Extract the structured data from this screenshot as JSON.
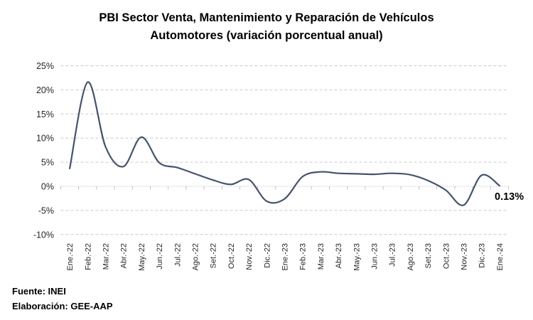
{
  "title": {
    "line1": "PBI Sector Venta, Mantenimiento y Reparación de Vehículos",
    "line2": "Automotores (variación porcentual anual)"
  },
  "chart_data": {
    "type": "line",
    "title": "PBI Sector Venta, Mantenimiento y Reparación de Vehículos Automotores (variación porcentual anual)",
    "categories": [
      "Ene.-22",
      "Feb.-22",
      "Mar.-22",
      "Abr.-22",
      "May.-22",
      "Jun.-22",
      "Jul.-22",
      "Ago.-22",
      "Set.-22",
      "Oct.-22",
      "Nov.-22",
      "Dic.-22",
      "Ene.-23",
      "Feb.-23",
      "Mar.-23",
      "Abr.-23",
      "May.-23",
      "Jun.-23",
      "Jul.-23",
      "Ago.-23",
      "Set.-23",
      "Oct.-23",
      "Nov.-23",
      "Dic.-23",
      "Ene.-24"
    ],
    "values": [
      3.7,
      21.6,
      8.2,
      4.1,
      10.2,
      4.9,
      3.9,
      2.6,
      1.3,
      0.4,
      1.4,
      -3.1,
      -2.6,
      2.0,
      3.0,
      2.7,
      2.6,
      2.5,
      2.7,
      2.4,
      1.2,
      -0.8,
      -3.9,
      2.3,
      0.13
    ],
    "y_ticks": [
      {
        "label": "25%",
        "value": 25
      },
      {
        "label": "20%",
        "value": 20
      },
      {
        "label": "15%",
        "value": 15
      },
      {
        "label": "10%",
        "value": 10
      },
      {
        "label": "5%",
        "value": 5
      },
      {
        "label": "0%",
        "value": 0
      },
      {
        "label": "-5%",
        "value": -5
      },
      {
        "label": "-10%",
        "value": -10
      }
    ],
    "ylim": [
      -10,
      25
    ],
    "grid": "horizontal-dashed",
    "legend": "none",
    "end_label": "0.13%",
    "colors": {
      "line": "#44546A",
      "gridline": "#C9C9C9",
      "zero_axis": "#C9C9C9",
      "axis_tick": "#BFBFBF",
      "axis_text": "#262626",
      "end_label_text": "#000000"
    }
  },
  "footer": {
    "source": "Fuente: INEI",
    "elaboration": "Elaboración: GEE-AAP"
  }
}
